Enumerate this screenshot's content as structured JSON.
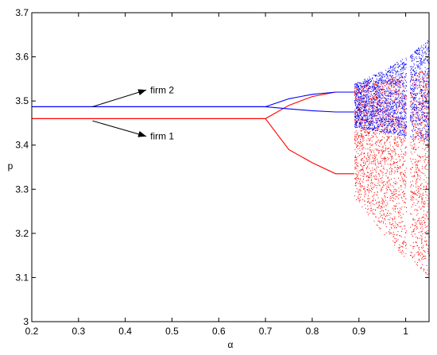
{
  "chart_data": {
    "type": "scatter",
    "xlabel": "α",
    "ylabel": "p",
    "xlim": [
      0.2,
      1.05
    ],
    "ylim": [
      3.0,
      3.7
    ],
    "xticks": [
      0.2,
      0.3,
      0.4,
      0.5,
      0.6,
      0.7,
      0.8,
      0.9,
      1
    ],
    "yticks": [
      3,
      3.1,
      3.2,
      3.3,
      3.4,
      3.5,
      3.6,
      3.7
    ],
    "xtick_labels": [
      "0.2",
      "0.3",
      "0.4",
      "0.5",
      "0.6",
      "0.7",
      "0.8",
      "0.9",
      "1"
    ],
    "ytick_labels": [
      "3",
      "3.1",
      "3.2",
      "3.3",
      "3.4",
      "3.5",
      "3.6",
      "3.7"
    ],
    "grid": false,
    "series": [
      {
        "name": "firm 1",
        "color": "#ff0000",
        "fixed_point": 3.46,
        "fixed_until_alpha": 0.695,
        "period2_branches": {
          "at_alpha": [
            0.7,
            0.75,
            0.8,
            0.85
          ],
          "upper": [
            3.46,
            3.49,
            3.51,
            3.52
          ],
          "lower": [
            3.46,
            3.39,
            3.36,
            3.335
          ]
        },
        "chaos_start_alpha": 0.89,
        "chaos_lower_envelope": {
          "alpha": [
            0.89,
            0.95,
            1.0,
            1.05
          ],
          "p": [
            3.28,
            3.2,
            3.14,
            3.1
          ]
        },
        "chaos_upper_envelope": {
          "alpha": [
            0.89,
            0.95,
            1.0,
            1.05
          ],
          "p": [
            3.535,
            3.55,
            3.56,
            3.57
          ]
        }
      },
      {
        "name": "firm 2",
        "color": "#0000ff",
        "fixed_point": 3.487,
        "fixed_until_alpha": 0.7,
        "period2_branches": {
          "at_alpha": [
            0.7,
            0.75,
            0.8,
            0.85
          ],
          "upper": [
            3.487,
            3.505,
            3.515,
            3.52
          ],
          "lower": [
            3.487,
            3.482,
            3.478,
            3.475
          ]
        },
        "chaos_start_alpha": 0.89,
        "chaos_lower_envelope": {
          "alpha": [
            0.89,
            0.95,
            1.0,
            1.05
          ],
          "p": [
            3.44,
            3.43,
            3.42,
            3.41
          ]
        },
        "chaos_upper_envelope": {
          "alpha": [
            0.89,
            0.95,
            1.0,
            1.05
          ],
          "p": [
            3.54,
            3.57,
            3.6,
            3.64
          ]
        }
      }
    ],
    "periodic_window_alpha": 1.005,
    "annotations": [
      {
        "text": "firm 2",
        "arrow_from": [
          0.33,
          3.487
        ],
        "arrow_to": [
          0.445,
          3.525
        ]
      },
      {
        "text": "firm 1",
        "arrow_from": [
          0.33,
          3.455
        ],
        "arrow_to": [
          0.445,
          3.42
        ]
      }
    ]
  }
}
